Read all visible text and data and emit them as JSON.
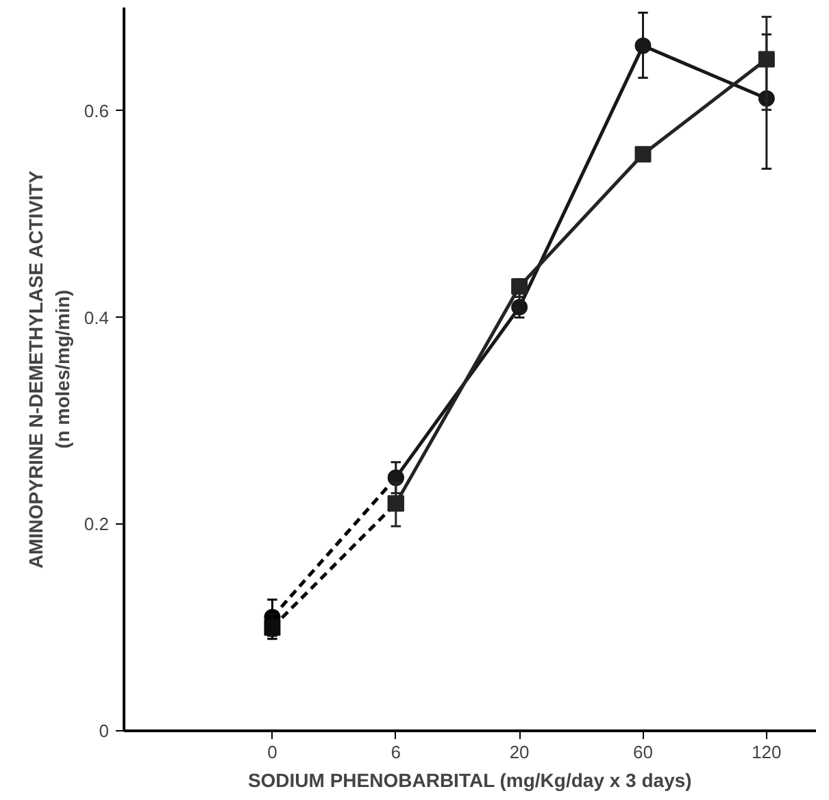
{
  "chart_data": {
    "type": "line",
    "xlabel": "SODIUM PHENOBARBITAL (mg/Kg/day x 3 days)",
    "ylabel": "AMINOPYRINE N-DEMETHYLASE ACTIVITY\n(n moles/mg/min)",
    "categories": [
      "0",
      "6",
      "20",
      "60",
      "120"
    ],
    "ylim": [
      0,
      0.7
    ],
    "yticks": [
      0,
      0.2,
      0.4,
      0.6
    ],
    "grid": false,
    "series": [
      {
        "color": "#000000",
        "marker": "circle",
        "line_style": "dashed",
        "values": [
          0.11,
          0.245,
          null,
          null,
          null
        ],
        "errors": [
          [
            0.089,
            0.127
          ],
          null,
          null,
          null,
          null
        ]
      },
      {
        "color": "#0c0c0c",
        "marker": "square",
        "line_style": "dashed",
        "values": [
          0.1,
          0.22,
          null,
          null,
          null
        ],
        "errors": [
          [
            0.092,
            0.113
          ],
          null,
          null,
          null,
          null
        ]
      },
      {
        "color": "#181818",
        "marker": "circle",
        "line_style": "solid",
        "values": [
          null,
          0.245,
          0.41,
          0.663,
          0.612
        ],
        "errors": [
          null,
          [
            0.23,
            0.26
          ],
          [
            0.4,
            0.42
          ],
          [
            0.632,
            0.695
          ],
          [
            0.544,
            0.674
          ]
        ]
      },
      {
        "color": "#242424",
        "marker": "square",
        "line_style": "solid",
        "values": [
          null,
          0.22,
          0.43,
          0.558,
          0.65
        ],
        "errors": [
          null,
          [
            0.198,
            0.24
          ],
          [
            0.42,
            0.437
          ],
          null,
          [
            0.601,
            0.691
          ]
        ]
      }
    ]
  }
}
